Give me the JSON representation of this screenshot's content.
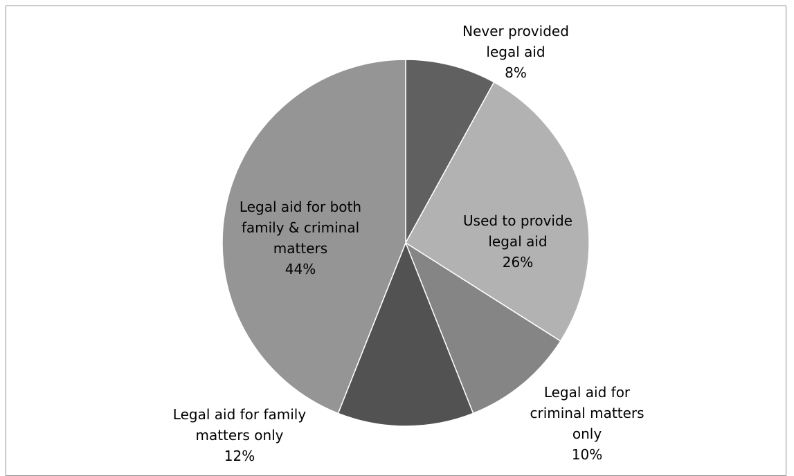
{
  "chart_data": {
    "type": "pie",
    "title": "",
    "start_angle_deg": 0,
    "direction": "clockwise",
    "slices": [
      {
        "name": "Never provided legal aid",
        "value": 8,
        "label_lines": [
          "Never provided",
          "legal aid"
        ],
        "value_label": "8%",
        "color": "#606060"
      },
      {
        "name": "Used to provide legal aid",
        "value": 26,
        "label_lines": [
          "Used to provide",
          "legal aid"
        ],
        "value_label": "26%",
        "color": "#b2b2b2"
      },
      {
        "name": "Legal aid for criminal matters only",
        "value": 10,
        "label_lines": [
          "Legal aid for",
          "criminal matters",
          "only"
        ],
        "value_label": "10%",
        "color": "#858585"
      },
      {
        "name": "Legal aid for family matters only",
        "value": 12,
        "label_lines": [
          "Legal aid for family",
          "matters only"
        ],
        "value_label": "12%",
        "color": "#525252"
      },
      {
        "name": "Legal aid for both family & criminal matters",
        "value": 44,
        "label_lines": [
          "Legal aid for both",
          "family & criminal",
          "matters"
        ],
        "value_label": "44%",
        "color": "#959595"
      }
    ]
  }
}
